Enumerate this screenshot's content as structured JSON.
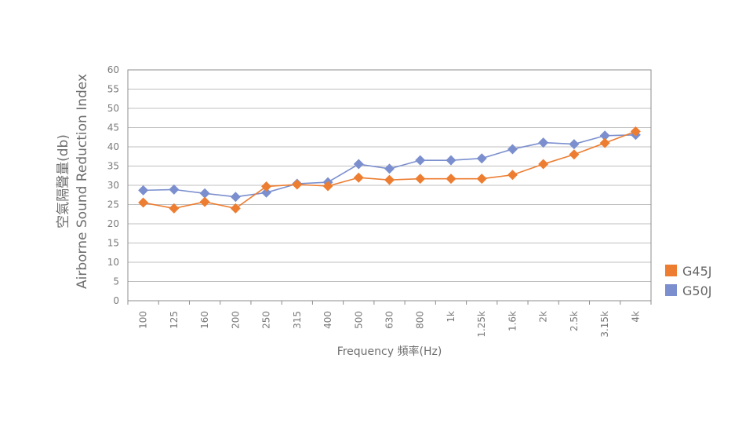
{
  "chart_data": {
    "type": "line",
    "x": [
      "100",
      "125",
      "160",
      "200",
      "250",
      "315",
      "400",
      "500",
      "630",
      "800",
      "1k",
      "1.25k",
      "1.6k",
      "2k",
      "2.5k",
      "3.15k",
      "4k"
    ],
    "series": [
      {
        "name": "G45J",
        "color": "#ed7d31",
        "marker": "diamond",
        "values": [
          25.5,
          24,
          25.7,
          24,
          29.7,
          30.2,
          29.8,
          32,
          31.4,
          31.7,
          31.7,
          31.7,
          32.7,
          35.5,
          38,
          41,
          44
        ]
      },
      {
        "name": "G50J",
        "color": "#7b8fce",
        "marker": "diamond",
        "values": [
          28.7,
          28.9,
          27.9,
          27,
          28.1,
          30.4,
          30.8,
          35.5,
          34.3,
          36.5,
          36.5,
          37,
          39.4,
          41.1,
          40.7,
          42.9,
          43.1
        ]
      }
    ],
    "ylabel_lines": [
      "空氣隔聲量(db)",
      "Airborne Sound Reduction Index"
    ],
    "xlabel": "Frequency 頻率(Hz)",
    "ylim": [
      0,
      60
    ],
    "ytick_step": 5,
    "grid": "horizontal",
    "legend_position": "right"
  }
}
